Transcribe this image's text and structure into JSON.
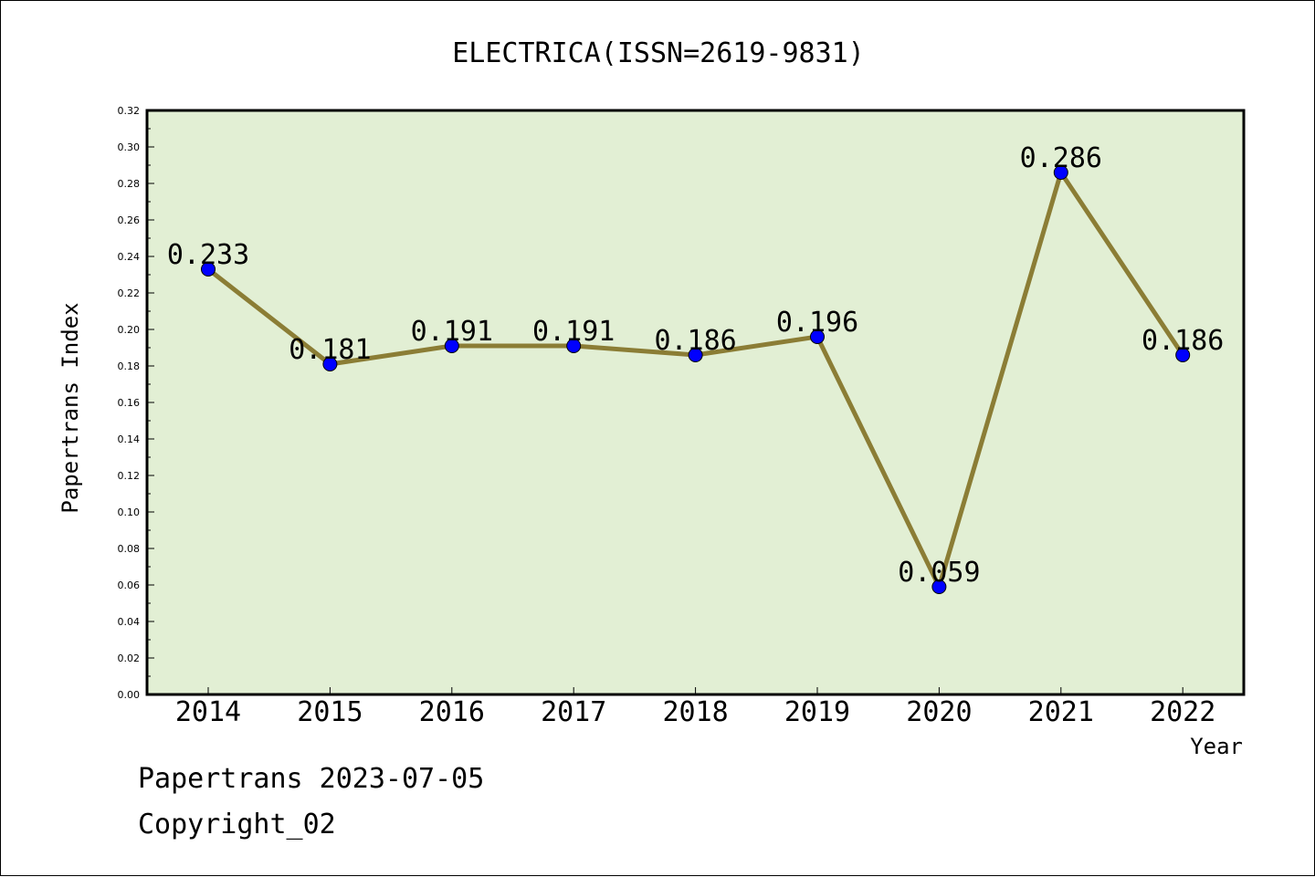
{
  "chart_data": {
    "type": "line",
    "title": "ELECTRICA(ISSN=2619-9831)",
    "xlabel": "Year",
    "ylabel": "Papertrans Index",
    "categories": [
      "2014",
      "2015",
      "2016",
      "2017",
      "2018",
      "2019",
      "2020",
      "2021",
      "2022"
    ],
    "values": [
      0.233,
      0.181,
      0.191,
      0.191,
      0.186,
      0.196,
      0.059,
      0.286,
      0.186
    ],
    "data_labels": [
      "0.233",
      "0.181",
      "0.191",
      "0.191",
      "0.186",
      "0.196",
      "0.059",
      "0.286",
      "0.186"
    ],
    "ylim": [
      0,
      0.32
    ],
    "yticks": [
      "0.00",
      "0.02",
      "0.04",
      "0.06",
      "0.08",
      "0.10",
      "0.12",
      "0.14",
      "0.16",
      "0.18",
      "0.20",
      "0.22",
      "0.24",
      "0.26",
      "0.28",
      "0.30",
      "0.32"
    ],
    "grid": false,
    "legend": "none",
    "colors": {
      "plot_background": "#e2efd4",
      "line": "#8b7d35",
      "marker": "#0000ff"
    }
  },
  "footer": {
    "line1": "Papertrans 2023-07-05",
    "line2": "Copyright_02"
  }
}
